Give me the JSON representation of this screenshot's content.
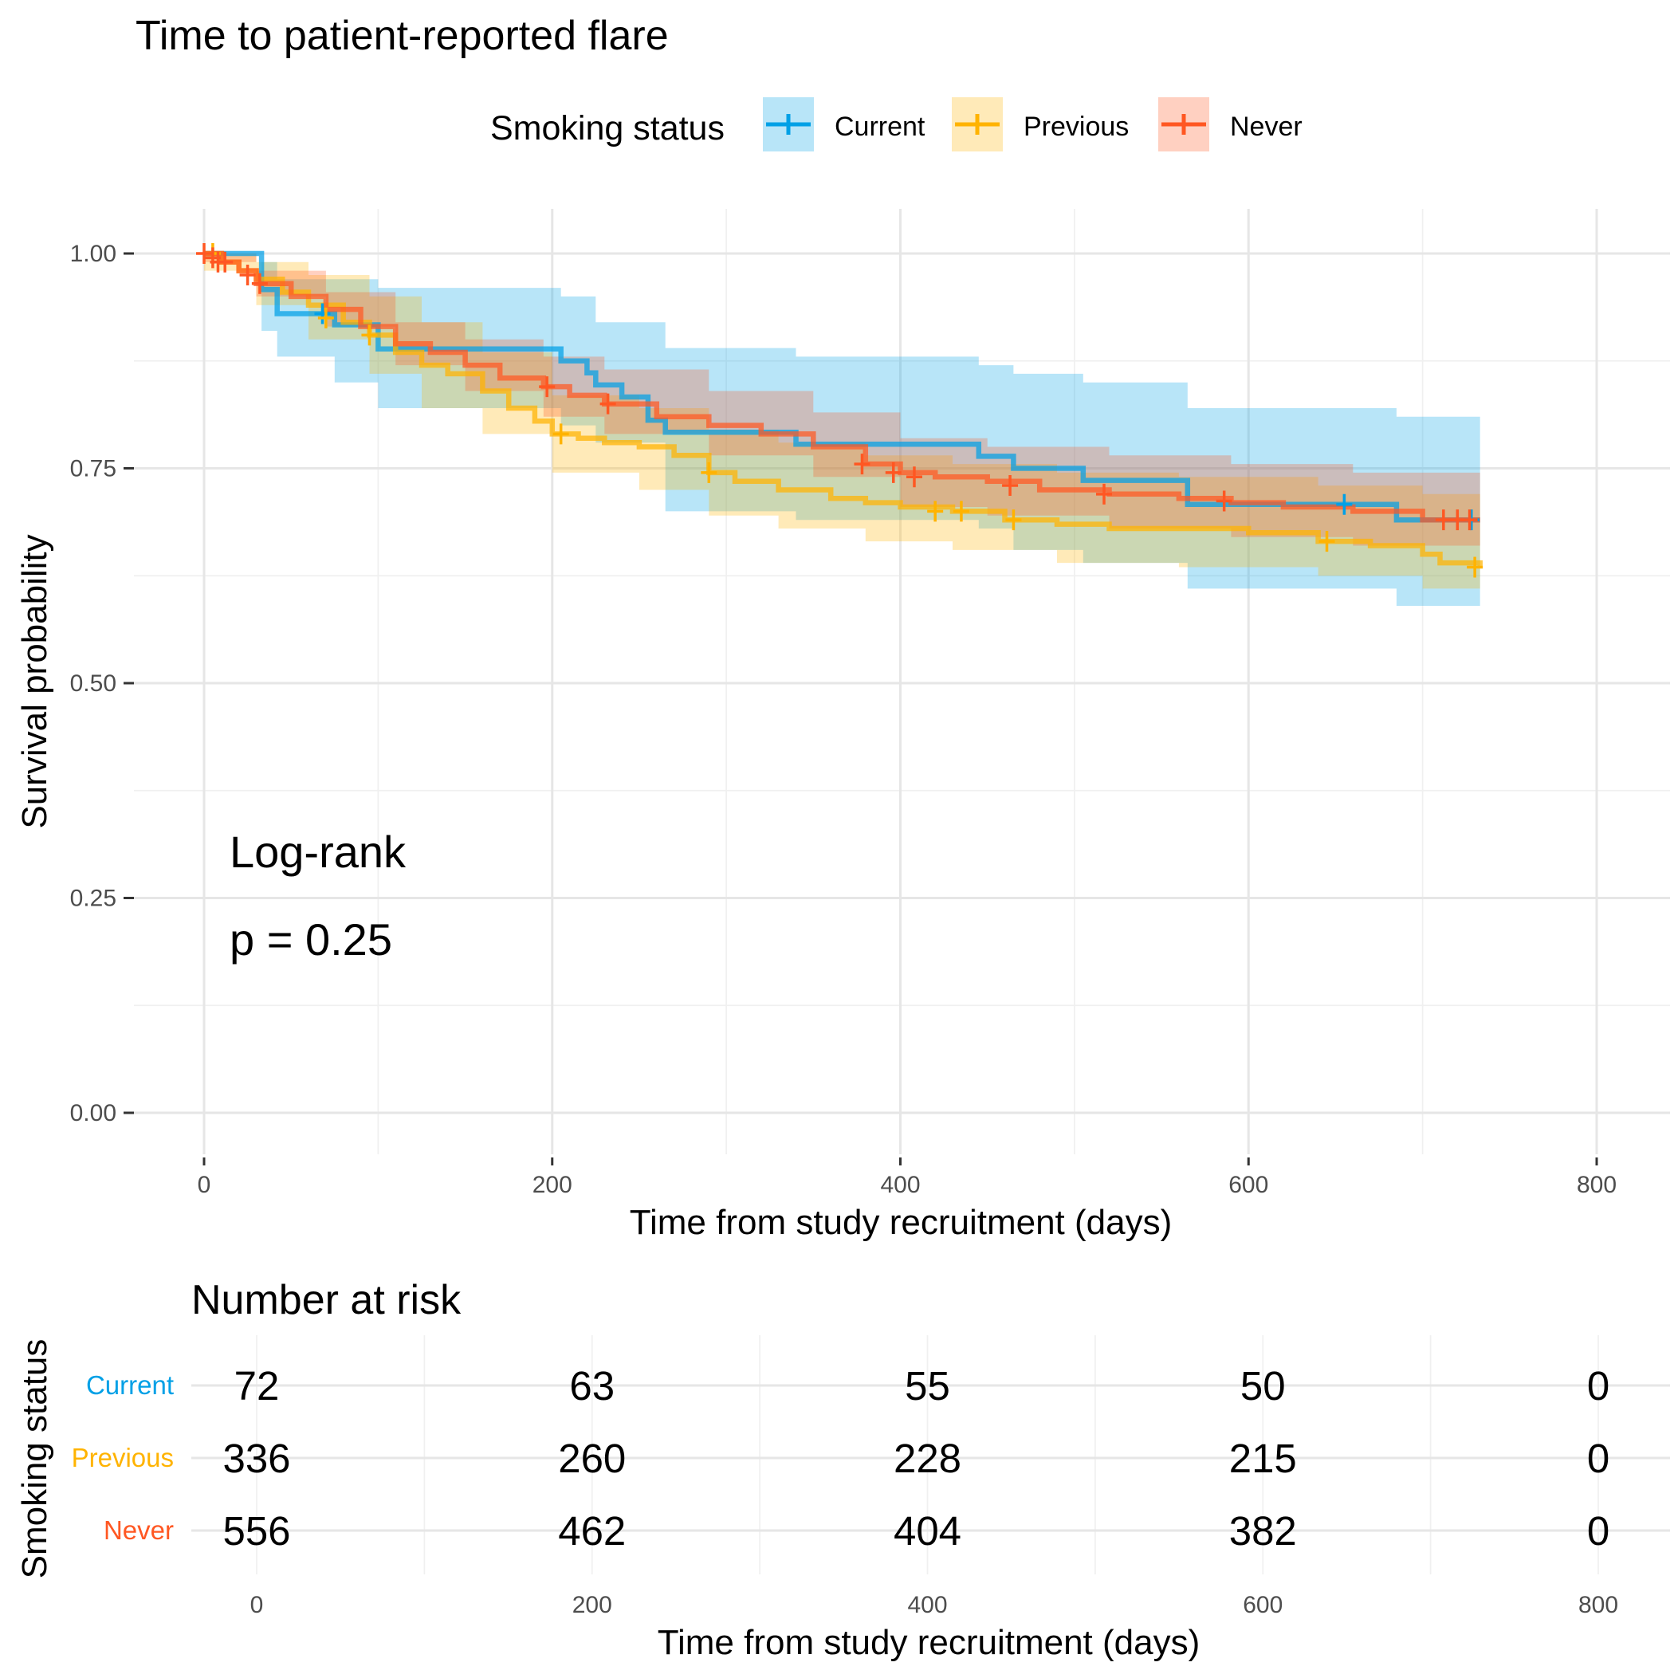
{
  "chart_data": {
    "type": "line",
    "subtype": "kaplan-meier",
    "title": "Time to patient-reported flare",
    "xlabel": "Time from study recruitment (days)",
    "ylabel": "Survival probability",
    "xlim": [
      0,
      800
    ],
    "ylim": [
      0,
      1
    ],
    "x_ticks": [
      "0",
      "200",
      "400",
      "600",
      "800"
    ],
    "y_ticks": [
      "0.00",
      "0.25",
      "0.50",
      "0.75",
      "1.00"
    ],
    "grid": true,
    "legend": {
      "title": "Smoking status",
      "position": "top",
      "entries": [
        "Current",
        "Previous",
        "Never"
      ]
    },
    "annotations": {
      "test": "Log-rank",
      "pvalue": "p = 0.25"
    },
    "series": [
      {
        "name": "Current",
        "color": "#00A0E6",
        "points": [
          [
            0,
            1.0
          ],
          [
            33,
            1.0
          ],
          [
            33,
            0.958
          ],
          [
            42,
            0.958
          ],
          [
            42,
            0.93
          ],
          [
            65,
            0.93
          ],
          [
            65,
            0.93
          ],
          [
            75,
            0.93
          ],
          [
            75,
            0.917
          ],
          [
            100,
            0.917
          ],
          [
            100,
            0.889
          ],
          [
            205,
            0.889
          ],
          [
            205,
            0.875
          ],
          [
            220,
            0.875
          ],
          [
            220,
            0.861
          ],
          [
            225,
            0.861
          ],
          [
            225,
            0.847
          ],
          [
            240,
            0.847
          ],
          [
            240,
            0.833
          ],
          [
            255,
            0.833
          ],
          [
            255,
            0.806
          ],
          [
            265,
            0.806
          ],
          [
            265,
            0.792
          ],
          [
            340,
            0.792
          ],
          [
            340,
            0.778
          ],
          [
            445,
            0.778
          ],
          [
            445,
            0.764
          ],
          [
            465,
            0.764
          ],
          [
            465,
            0.75
          ],
          [
            505,
            0.75
          ],
          [
            505,
            0.736
          ],
          [
            565,
            0.736
          ],
          [
            565,
            0.708
          ],
          [
            685,
            0.708
          ],
          [
            685,
            0.69
          ],
          [
            733,
            0.69
          ]
        ],
        "lower": [
          [
            0,
            1.0
          ],
          [
            33,
            1.0
          ],
          [
            33,
            0.91
          ],
          [
            42,
            0.91
          ],
          [
            42,
            0.88
          ],
          [
            75,
            0.88
          ],
          [
            75,
            0.85
          ],
          [
            100,
            0.85
          ],
          [
            100,
            0.82
          ],
          [
            205,
            0.82
          ],
          [
            205,
            0.8
          ],
          [
            225,
            0.8
          ],
          [
            225,
            0.78
          ],
          [
            265,
            0.78
          ],
          [
            265,
            0.7
          ],
          [
            340,
            0.7
          ],
          [
            340,
            0.69
          ],
          [
            445,
            0.69
          ],
          [
            445,
            0.68
          ],
          [
            465,
            0.68
          ],
          [
            465,
            0.655
          ],
          [
            505,
            0.655
          ],
          [
            505,
            0.64
          ],
          [
            565,
            0.64
          ],
          [
            565,
            0.61
          ],
          [
            685,
            0.61
          ],
          [
            685,
            0.59
          ],
          [
            733,
            0.59
          ]
        ],
        "upper": [
          [
            0,
            1.0
          ],
          [
            33,
            1.0
          ],
          [
            33,
            0.99
          ],
          [
            42,
            0.99
          ],
          [
            42,
            0.97
          ],
          [
            100,
            0.97
          ],
          [
            100,
            0.96
          ],
          [
            205,
            0.96
          ],
          [
            205,
            0.95
          ],
          [
            225,
            0.95
          ],
          [
            225,
            0.92
          ],
          [
            265,
            0.92
          ],
          [
            265,
            0.89
          ],
          [
            340,
            0.89
          ],
          [
            340,
            0.88
          ],
          [
            445,
            0.88
          ],
          [
            445,
            0.87
          ],
          [
            465,
            0.87
          ],
          [
            465,
            0.86
          ],
          [
            505,
            0.86
          ],
          [
            505,
            0.85
          ],
          [
            565,
            0.85
          ],
          [
            565,
            0.82
          ],
          [
            685,
            0.82
          ],
          [
            685,
            0.81
          ],
          [
            733,
            0.81
          ]
        ],
        "censored": [
          [
            68,
            0.93
          ],
          [
            655,
            0.708
          ],
          [
            728,
            0.69
          ]
        ]
      },
      {
        "name": "Previous",
        "color": "#FFB300",
        "points": [
          [
            0,
            1.0
          ],
          [
            10,
            0.99
          ],
          [
            20,
            0.98
          ],
          [
            30,
            0.97
          ],
          [
            45,
            0.955
          ],
          [
            60,
            0.94
          ],
          [
            80,
            0.92
          ],
          [
            95,
            0.905
          ],
          [
            110,
            0.885
          ],
          [
            125,
            0.87
          ],
          [
            140,
            0.86
          ],
          [
            160,
            0.84
          ],
          [
            175,
            0.82
          ],
          [
            190,
            0.805
          ],
          [
            200,
            0.79
          ],
          [
            215,
            0.785
          ],
          [
            230,
            0.78
          ],
          [
            250,
            0.775
          ],
          [
            270,
            0.765
          ],
          [
            290,
            0.745
          ],
          [
            305,
            0.735
          ],
          [
            330,
            0.725
          ],
          [
            360,
            0.715
          ],
          [
            380,
            0.71
          ],
          [
            400,
            0.705
          ],
          [
            430,
            0.7
          ],
          [
            460,
            0.69
          ],
          [
            490,
            0.685
          ],
          [
            520,
            0.68
          ],
          [
            560,
            0.68
          ],
          [
            600,
            0.675
          ],
          [
            640,
            0.665
          ],
          [
            670,
            0.66
          ],
          [
            700,
            0.65
          ],
          [
            710,
            0.64
          ],
          [
            733,
            0.635
          ]
        ],
        "lower": [
          [
            0,
            0.98
          ],
          [
            30,
            0.94
          ],
          [
            60,
            0.9
          ],
          [
            95,
            0.86
          ],
          [
            125,
            0.82
          ],
          [
            160,
            0.79
          ],
          [
            200,
            0.745
          ],
          [
            250,
            0.725
          ],
          [
            290,
            0.695
          ],
          [
            330,
            0.68
          ],
          [
            380,
            0.665
          ],
          [
            430,
            0.655
          ],
          [
            490,
            0.64
          ],
          [
            560,
            0.635
          ],
          [
            640,
            0.625
          ],
          [
            700,
            0.61
          ],
          [
            733,
            0.59
          ]
        ],
        "upper": [
          [
            0,
            1.0
          ],
          [
            30,
            0.99
          ],
          [
            60,
            0.975
          ],
          [
            95,
            0.95
          ],
          [
            125,
            0.92
          ],
          [
            160,
            0.885
          ],
          [
            200,
            0.835
          ],
          [
            250,
            0.82
          ],
          [
            290,
            0.795
          ],
          [
            330,
            0.78
          ],
          [
            380,
            0.765
          ],
          [
            430,
            0.755
          ],
          [
            490,
            0.745
          ],
          [
            560,
            0.74
          ],
          [
            640,
            0.73
          ],
          [
            700,
            0.72
          ],
          [
            733,
            0.71
          ]
        ],
        "censored": [
          [
            5,
            1.0
          ],
          [
            70,
            0.925
          ],
          [
            95,
            0.905
          ],
          [
            205,
            0.79
          ],
          [
            290,
            0.745
          ],
          [
            420,
            0.7
          ],
          [
            435,
            0.7
          ],
          [
            465,
            0.69
          ],
          [
            645,
            0.665
          ],
          [
            730,
            0.635
          ]
        ]
      },
      {
        "name": "Never",
        "color": "#FF5722",
        "points": [
          [
            0,
            1.0
          ],
          [
            10,
            0.99
          ],
          [
            20,
            0.98
          ],
          [
            30,
            0.965
          ],
          [
            50,
            0.95
          ],
          [
            70,
            0.935
          ],
          [
            90,
            0.915
          ],
          [
            110,
            0.895
          ],
          [
            130,
            0.885
          ],
          [
            150,
            0.87
          ],
          [
            170,
            0.855
          ],
          [
            195,
            0.845
          ],
          [
            210,
            0.835
          ],
          [
            230,
            0.825
          ],
          [
            260,
            0.81
          ],
          [
            290,
            0.8
          ],
          [
            320,
            0.79
          ],
          [
            350,
            0.775
          ],
          [
            380,
            0.755
          ],
          [
            400,
            0.745
          ],
          [
            420,
            0.74
          ],
          [
            450,
            0.735
          ],
          [
            480,
            0.725
          ],
          [
            520,
            0.72
          ],
          [
            560,
            0.715
          ],
          [
            590,
            0.71
          ],
          [
            620,
            0.705
          ],
          [
            660,
            0.7
          ],
          [
            700,
            0.69
          ],
          [
            733,
            0.69
          ]
        ],
        "lower": [
          [
            0,
            0.99
          ],
          [
            30,
            0.95
          ],
          [
            70,
            0.915
          ],
          [
            110,
            0.87
          ],
          [
            150,
            0.84
          ],
          [
            195,
            0.81
          ],
          [
            230,
            0.79
          ],
          [
            290,
            0.765
          ],
          [
            350,
            0.74
          ],
          [
            400,
            0.705
          ],
          [
            450,
            0.695
          ],
          [
            520,
            0.68
          ],
          [
            590,
            0.67
          ],
          [
            660,
            0.66
          ],
          [
            733,
            0.645
          ]
        ],
        "upper": [
          [
            0,
            1.0
          ],
          [
            30,
            0.98
          ],
          [
            70,
            0.955
          ],
          [
            110,
            0.92
          ],
          [
            150,
            0.9
          ],
          [
            195,
            0.88
          ],
          [
            230,
            0.865
          ],
          [
            290,
            0.84
          ],
          [
            350,
            0.815
          ],
          [
            400,
            0.785
          ],
          [
            450,
            0.775
          ],
          [
            520,
            0.765
          ],
          [
            590,
            0.755
          ],
          [
            660,
            0.745
          ],
          [
            733,
            0.735
          ]
        ],
        "censored": [
          [
            0,
            1.0
          ],
          [
            5,
            0.995
          ],
          [
            8,
            0.99
          ],
          [
            12,
            0.99
          ],
          [
            25,
            0.975
          ],
          [
            32,
            0.965
          ],
          [
            197,
            0.845
          ],
          [
            232,
            0.825
          ],
          [
            378,
            0.755
          ],
          [
            396,
            0.745
          ],
          [
            408,
            0.74
          ],
          [
            463,
            0.73
          ],
          [
            517,
            0.72
          ],
          [
            586,
            0.712
          ],
          [
            712,
            0.69
          ],
          [
            720,
            0.69
          ],
          [
            727,
            0.69
          ]
        ]
      }
    ]
  },
  "risk_table": {
    "title": "Number at risk",
    "ylabel": "Smoking status",
    "xlabel": "Time from study recruitment (days)",
    "x_ticks": [
      "0",
      "200",
      "400",
      "600",
      "800"
    ],
    "groups": [
      {
        "name": "Current",
        "color": "#00A0E6",
        "values": [
          "72",
          "63",
          "55",
          "50",
          "0"
        ]
      },
      {
        "name": "Previous",
        "color": "#FFB300",
        "values": [
          "336",
          "260",
          "228",
          "215",
          "0"
        ]
      },
      {
        "name": "Never",
        "color": "#FF5722",
        "values": [
          "556",
          "462",
          "404",
          "382",
          "0"
        ]
      }
    ]
  }
}
